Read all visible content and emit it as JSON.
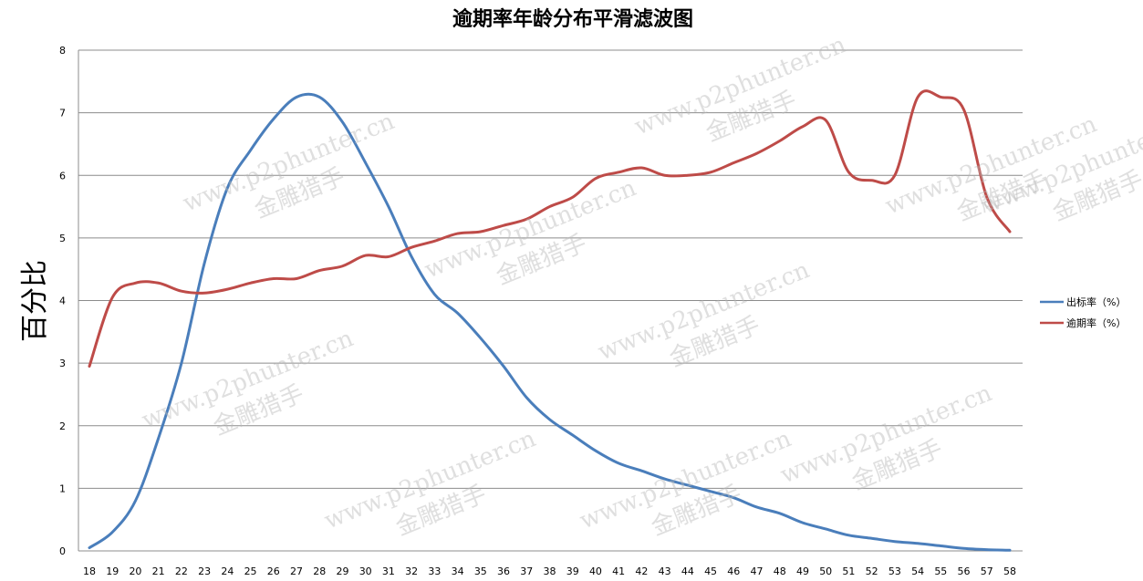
{
  "chart_data": {
    "type": "line",
    "title": "逾期率年龄分布平滑滤波图",
    "xlabel": "",
    "ylabel": "百分比",
    "ylim": [
      0,
      8
    ],
    "yticks": [
      "0",
      "1",
      "2",
      "3",
      "4",
      "5",
      "6",
      "7",
      "8"
    ],
    "grid": true,
    "legend_position": "right",
    "categories": [
      "18",
      "19",
      "20",
      "21",
      "22",
      "23",
      "24",
      "25",
      "26",
      "27",
      "28",
      "29",
      "30",
      "31",
      "32",
      "33",
      "34",
      "35",
      "36",
      "37",
      "38",
      "39",
      "40",
      "41",
      "42",
      "43",
      "44",
      "45",
      "46",
      "47",
      "48",
      "49",
      "50",
      "51",
      "52",
      "53",
      "54",
      "55",
      "56",
      "57",
      "58"
    ],
    "series": [
      {
        "name": "出标率（%）",
        "color": "#4a7ebb",
        "values": [
          0.05,
          0.3,
          0.8,
          1.8,
          3.0,
          4.6,
          5.8,
          6.4,
          6.9,
          7.25,
          7.25,
          6.85,
          6.2,
          5.5,
          4.7,
          4.1,
          3.8,
          3.4,
          2.95,
          2.45,
          2.1,
          1.85,
          1.6,
          1.4,
          1.28,
          1.15,
          1.05,
          0.95,
          0.85,
          0.7,
          0.6,
          0.45,
          0.35,
          0.25,
          0.2,
          0.15,
          0.12,
          0.08,
          0.04,
          0.02,
          0.01
        ]
      },
      {
        "name": "逾期率（%）",
        "color": "#be4b48",
        "values": [
          2.95,
          4.05,
          4.28,
          4.28,
          4.15,
          4.12,
          4.18,
          4.28,
          4.35,
          4.35,
          4.48,
          4.55,
          4.72,
          4.7,
          4.85,
          4.95,
          5.07,
          5.1,
          5.2,
          5.3,
          5.5,
          5.65,
          5.95,
          6.05,
          6.12,
          6.0,
          6.0,
          6.05,
          6.2,
          6.35,
          6.55,
          6.78,
          6.88,
          6.05,
          5.92,
          6.0,
          7.25,
          7.25,
          7.05,
          5.65,
          5.1
        ]
      }
    ]
  },
  "watermark": {
    "url_text": "www.p2phunter.cn",
    "brand_text": "金雕猎手"
  }
}
